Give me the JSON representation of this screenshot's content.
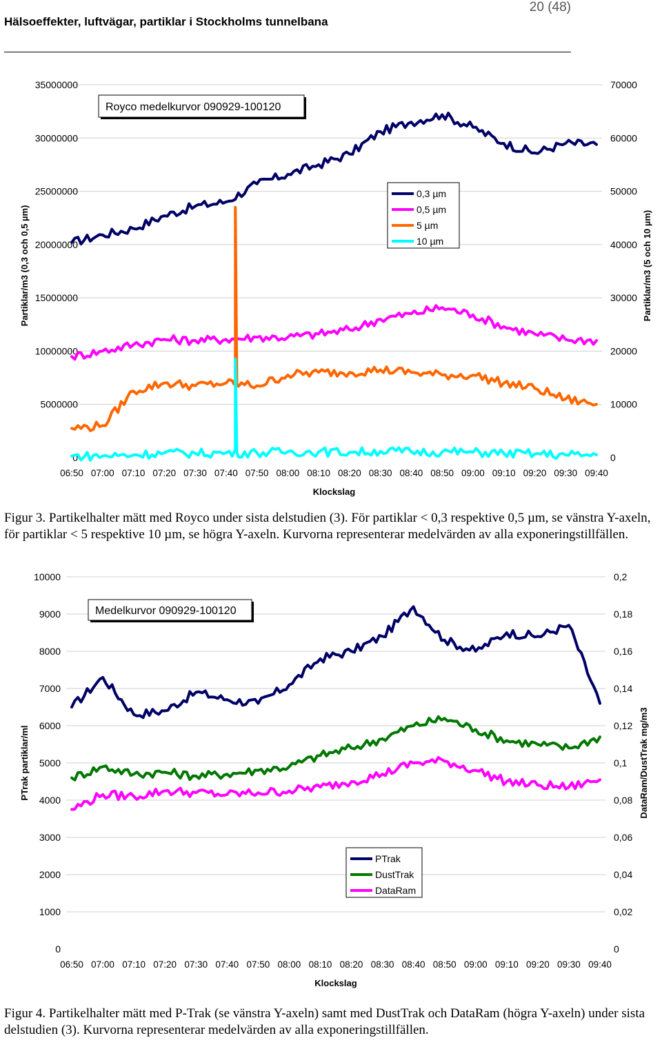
{
  "header": {
    "title": "Hälsoeffekter, luftvägar, partiklar i Stockholms tunnelbana",
    "page": "20 (48)"
  },
  "chart_data": [
    {
      "type": "line",
      "title": "Royco medelkurvor 090929-100120",
      "xlabel": "Klockslag",
      "ylabel_left": "Partiklar/m3    (0,3 och 0,5 µm)",
      "ylabel_right": "Partiklar/m3    (5 och 10 µm)",
      "ylim_left": [
        0,
        35000000
      ],
      "ylim_right": [
        0,
        70000
      ],
      "yticks_left": [
        "0",
        "5000000",
        "10000000",
        "15000000",
        "20000000",
        "25000000",
        "30000000",
        "35000000"
      ],
      "yticks_right": [
        "0",
        "10000",
        "20000",
        "30000",
        "40000",
        "50000",
        "60000",
        "70000"
      ],
      "categories": [
        "06:50",
        "07:00",
        "07:10",
        "07:20",
        "07:30",
        "07:40",
        "07:50",
        "08:00",
        "08:10",
        "08:20",
        "08:30",
        "08:40",
        "08:50",
        "09:00",
        "09:10",
        "09:20",
        "09:30",
        "09:40"
      ],
      "series": [
        {
          "name": "0,3 µm",
          "axis": "left",
          "color": "#000066",
          "values": [
            20200000,
            20900000,
            21500000,
            22700000,
            23600000,
            24000000,
            25700000,
            26600000,
            27500000,
            28500000,
            30600000,
            31500000,
            32200000,
            31000000,
            29500000,
            28600000,
            29500000,
            29400000
          ]
        },
        {
          "name": "0,5 µm",
          "axis": "left",
          "color": "#ff00ff",
          "values": [
            9500000,
            10000000,
            10600000,
            11100000,
            11000000,
            11100000,
            11300000,
            11300000,
            11600000,
            12000000,
            13000000,
            13500000,
            14100000,
            13400000,
            12300000,
            11600000,
            11100000,
            11000000
          ]
        },
        {
          "name": "5 µm",
          "axis": "right",
          "color": "#ff6600",
          "values": [
            5500,
            6000,
            12500,
            14000,
            13500,
            14000,
            13500,
            15500,
            16000,
            16000,
            16500,
            16000,
            15500,
            15500,
            14000,
            13000,
            11000,
            10000
          ]
        },
        {
          "name": "10 µm",
          "axis": "right",
          "color": "#00ffff",
          "values": [
            300,
            300,
            500,
            900,
            800,
            900,
            900,
            1100,
            1100,
            1000,
            1200,
            1100,
            1100,
            1000,
            800,
            700,
            500,
            500
          ]
        }
      ],
      "annotations": [
        {
          "series": "5 µm",
          "x": "07:43",
          "value": 47000
        },
        {
          "series": "10 µm",
          "x": "07:43",
          "value": 18500
        }
      ]
    },
    {
      "type": "line",
      "title": "Medelkurvor 090929-100120",
      "xlabel": "Klockslag",
      "ylabel_left": "PTrak  partiklar/ml",
      "ylabel_right": "DataRam/DustTrak  mg/m3",
      "ylim_left": [
        0,
        10000
      ],
      "ylim_right": [
        0,
        0.2
      ],
      "yticks_left": [
        "0",
        "1000",
        "2000",
        "3000",
        "4000",
        "5000",
        "6000",
        "7000",
        "8000",
        "9000",
        "10000"
      ],
      "yticks_right": [
        "0",
        "0,02",
        "0,04",
        "0,06",
        "0,08",
        "0,1",
        "0,12",
        "0,14",
        "0,16",
        "0,18",
        "0,2"
      ],
      "categories": [
        "06:50",
        "07:00",
        "07:10",
        "07:20",
        "07:30",
        "07:40",
        "07:50",
        "08:00",
        "08:10",
        "08:20",
        "08:30",
        "08:40",
        "08:50",
        "09:00",
        "09:10",
        "09:20",
        "09:30",
        "09:40"
      ],
      "series": [
        {
          "name": "PTrak",
          "axis": "left",
          "color": "#000066",
          "values": [
            6500,
            7300,
            6300,
            6400,
            6900,
            6700,
            6600,
            7100,
            7800,
            8000,
            8400,
            9200,
            8300,
            8000,
            8500,
            8400,
            8700,
            6600
          ]
        },
        {
          "name": "DustTrak",
          "axis": "right",
          "color": "#007700",
          "values": [
            0.092,
            0.098,
            0.094,
            0.095,
            0.093,
            0.094,
            0.096,
            0.098,
            0.104,
            0.108,
            0.113,
            0.12,
            0.124,
            0.118,
            0.112,
            0.11,
            0.108,
            0.114
          ]
        },
        {
          "name": "DataRam",
          "axis": "right",
          "color": "#ff00ff",
          "values": [
            0.075,
            0.083,
            0.082,
            0.085,
            0.084,
            0.083,
            0.084,
            0.085,
            0.087,
            0.09,
            0.094,
            0.1,
            0.101,
            0.096,
            0.09,
            0.088,
            0.087,
            0.091
          ]
        }
      ]
    }
  ],
  "captions": {
    "fig3": "Figur 3. Partikelhalter mätt med Royco under sista delstudien (3). För partiklar < 0,3 respektive 0,5 µm, se vänstra Y-axeln, för partiklar < 5 respektive 10 µm, se högra Y-axeln. Kurvorna representerar medelvärden av alla exponeringstillfällen.",
    "fig4": "Figur 4. Partikelhalter mätt med P-Trak (se vänstra Y-axeln) samt med DustTrak och DataRam (högra Y-axeln) under sista delstudien (3). Kurvorna representerar medelvärden av alla exponeringstillfällen."
  }
}
